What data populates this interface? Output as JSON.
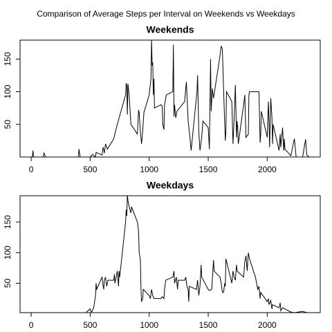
{
  "title": "Comparison of Average Steps per Interval on Weekends vs Weekdays",
  "chart_data": [
    {
      "type": "line",
      "title": "Weekends",
      "color": "#000000",
      "x": [
        0,
        10,
        15,
        20,
        100,
        110,
        120,
        200,
        400,
        405,
        415,
        500,
        520,
        545,
        550,
        600,
        610,
        620,
        630,
        645,
        700,
        715,
        745,
        800,
        805,
        810,
        815,
        820,
        830,
        845,
        900,
        910,
        915,
        925,
        935,
        945,
        955,
        1000,
        1015,
        1020,
        1025,
        1030,
        1035,
        1040,
        1045,
        1100,
        1110,
        1115,
        1125,
        1130,
        1145,
        1200,
        1205,
        1210,
        1215,
        1225,
        1235,
        1300,
        1315,
        1330,
        1345,
        1355,
        1405,
        1410,
        1420,
        1430,
        1445,
        1455,
        1500,
        1510,
        1520,
        1525,
        1535,
        1545,
        1600,
        1610,
        1620,
        1630,
        1640,
        1645,
        1650,
        1655,
        1700,
        1710,
        1720,
        1730,
        1740,
        1745,
        1750,
        1755,
        1800,
        1810,
        1820,
        1840,
        1845,
        1850,
        1900,
        1930,
        1940,
        1945,
        1950,
        2000,
        2010,
        2015,
        2020,
        2030,
        2040,
        2045,
        2050,
        2100,
        2110,
        2115,
        2130,
        2140,
        2145,
        2150,
        2200,
        2230,
        2245,
        2300,
        2325,
        2335,
        2355
      ],
      "values": [
        0,
        0,
        10,
        0,
        0,
        6,
        0,
        0,
        0,
        12,
        0,
        0,
        4,
        0,
        7,
        3,
        15,
        6,
        20,
        12,
        28,
        40,
        60,
        95,
        113,
        110,
        65,
        112,
        95,
        50,
        35,
        72,
        68,
        40,
        20,
        40,
        68,
        95,
        120,
        180,
        140,
        145,
        95,
        120,
        75,
        80,
        78,
        50,
        42,
        80,
        95,
        100,
        172,
        62,
        80,
        60,
        70,
        85,
        115,
        55,
        30,
        10,
        100,
        125,
        40,
        10,
        30,
        55,
        45,
        12,
        150,
        70,
        105,
        90,
        155,
        170,
        165,
        105,
        50,
        25,
        40,
        100,
        85,
        20,
        60,
        110,
        30,
        55,
        45,
        20,
        80,
        95,
        30,
        35,
        95,
        100,
        100,
        100,
        22,
        35,
        70,
        30,
        85,
        55,
        15,
        90,
        60,
        20,
        50,
        10,
        35,
        15,
        45,
        10,
        28,
        12,
        2,
        28,
        0,
        0,
        27,
        3,
        0
      ],
      "xlim": [
        -94.2,
        2449.2
      ],
      "ylim": [
        0,
        179
      ],
      "xticks": [
        0,
        500,
        1000,
        1500,
        2000
      ],
      "yticks": [
        50,
        100,
        150
      ]
    },
    {
      "type": "line",
      "title": "Weekdays",
      "color": "#000000",
      "x": [
        0,
        100,
        200,
        300,
        400,
        450,
        500,
        510,
        530,
        545,
        550,
        555,
        600,
        610,
        615,
        620,
        630,
        640,
        650,
        700,
        705,
        710,
        720,
        730,
        740,
        745,
        750,
        800,
        805,
        810,
        815,
        820,
        830,
        845,
        850,
        900,
        910,
        915,
        925,
        930,
        935,
        945,
        950,
        1000,
        1010,
        1020,
        1030,
        1040,
        1100,
        1110,
        1125,
        1130,
        1140,
        1200,
        1210,
        1215,
        1230,
        1240,
        1245,
        1300,
        1310,
        1320,
        1330,
        1335,
        1340,
        1400,
        1410,
        1420,
        1430,
        1440,
        1445,
        1500,
        1510,
        1530,
        1545,
        1550,
        1600,
        1610,
        1620,
        1630,
        1640,
        1645,
        1650,
        1700,
        1710,
        1720,
        1730,
        1740,
        1745,
        1800,
        1810,
        1820,
        1830,
        1840,
        1850,
        1900,
        1910,
        1920,
        1930,
        1940,
        1945,
        2000,
        2010,
        2015,
        2030,
        2040,
        2045,
        2100,
        2110,
        2115,
        2130,
        2200,
        2230,
        2300,
        2355
      ],
      "values": [
        2,
        0,
        0,
        0,
        0,
        0,
        8,
        2,
        10,
        30,
        50,
        40,
        60,
        45,
        40,
        55,
        60,
        45,
        55,
        55,
        65,
        50,
        60,
        70,
        45,
        70,
        60,
        150,
        170,
        160,
        195,
        185,
        175,
        165,
        175,
        150,
        135,
        100,
        90,
        45,
        20,
        25,
        40,
        30,
        25,
        40,
        30,
        25,
        25,
        28,
        25,
        40,
        55,
        60,
        70,
        50,
        60,
        40,
        55,
        55,
        60,
        45,
        40,
        20,
        45,
        40,
        55,
        30,
        45,
        80,
        60,
        40,
        38,
        40,
        88,
        70,
        60,
        50,
        35,
        35,
        50,
        45,
        90,
        50,
        70,
        60,
        55,
        80,
        70,
        60,
        85,
        95,
        70,
        100,
        90,
        60,
        50,
        40,
        45,
        25,
        35,
        20,
        25,
        15,
        22,
        8,
        15,
        10,
        18,
        5,
        10,
        3,
        2,
        4,
        1
      ],
      "xlim": [
        -94.2,
        2449.2
      ],
      "ylim": [
        2,
        193
      ],
      "xticks": [
        0,
        500,
        1000,
        1500,
        2000
      ],
      "yticks": [
        50,
        100,
        150
      ]
    }
  ]
}
